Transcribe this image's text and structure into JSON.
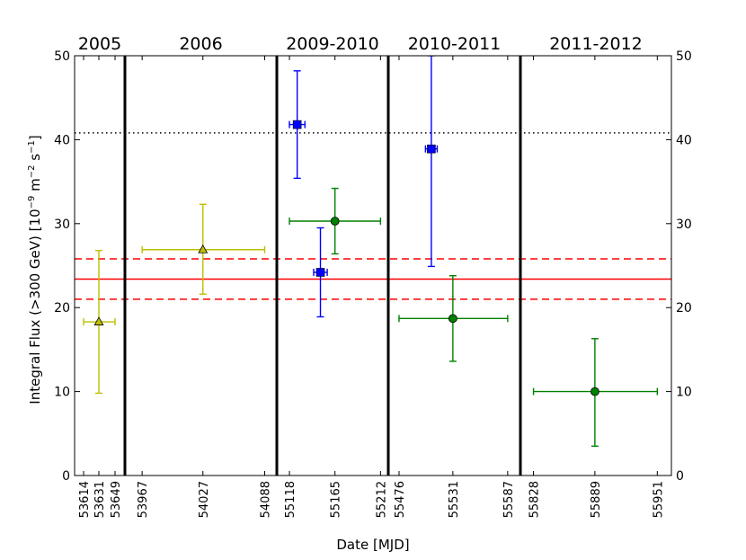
{
  "chart_data": {
    "type": "scatter",
    "xlabel": "Date [MJD]",
    "ylabel_parts": {
      "main": "Integral Flux (>300 GeV) [10",
      "exp1": "−9",
      "mid": " m",
      "exp2": "−2",
      "mid2": " s",
      "exp3": "−1",
      "end": "]"
    },
    "ylim": [
      0,
      50
    ],
    "yticks": [
      "0",
      "10",
      "20",
      "30",
      "40",
      "50"
    ],
    "yticks_right": [
      "0",
      "10",
      "20",
      "30",
      "40",
      "50"
    ],
    "grid": false,
    "panels": [
      {
        "title": "2005",
        "xlim": [
          53604,
          53660
        ],
        "xticks": [
          "53614",
          "53631",
          "53649"
        ]
      },
      {
        "title": "2006",
        "xlim": [
          53950,
          54100
        ],
        "xticks": [
          "53967",
          "54027",
          "54088"
        ]
      },
      {
        "title": "2009-2010",
        "xlim": [
          55105,
          55220
        ],
        "xticks": [
          "55118",
          "55165",
          "55212"
        ]
      },
      {
        "title": "2010-2011",
        "xlim": [
          55465,
          55600
        ],
        "xticks": [
          "55476",
          "55531",
          "55587"
        ]
      },
      {
        "title": "2011-2012",
        "xlim": [
          55815,
          55965
        ],
        "xticks": [
          "55828",
          "55889",
          "55951"
        ]
      }
    ],
    "reference_lines": {
      "mean": 23.4,
      "mean_color": "#ff0000",
      "band": [
        21.0,
        25.8
      ],
      "band_color": "#ff0000",
      "dotted": 40.8,
      "dotted_color": "#000000"
    },
    "series": [
      {
        "marker": "triangle",
        "color": "#bfbf00",
        "fill": "#bfbf00",
        "points": [
          {
            "panel": 0,
            "x": 53631,
            "xerr": [
              53614,
              53649
            ],
            "y": 18.3,
            "yerr": [
              9.8,
              26.8
            ]
          },
          {
            "panel": 1,
            "x": 54027,
            "xerr": [
              53967,
              54088
            ],
            "y": 26.9,
            "yerr": [
              21.6,
              32.3
            ]
          }
        ]
      },
      {
        "marker": "square",
        "color": "#0000ff",
        "fill": "#0000ff",
        "points": [
          {
            "panel": 2,
            "x": 55126,
            "xerr": [
              55118,
              55134
            ],
            "y": 41.8,
            "yerr": [
              35.4,
              48.2
            ]
          },
          {
            "panel": 2,
            "x": 55150,
            "xerr": [
              55143,
              55157
            ],
            "y": 24.2,
            "yerr": [
              18.9,
              29.5
            ]
          },
          {
            "panel": 3,
            "x": 55509,
            "xerr": [
              55503,
              55515
            ],
            "y": 38.9,
            "yerr": [
              24.9,
              50
            ]
          }
        ]
      },
      {
        "marker": "circle",
        "color": "#008000",
        "fill": "#008000",
        "points": [
          {
            "panel": 2,
            "x": 55165,
            "xerr": [
              55118,
              55212
            ],
            "y": 30.3,
            "yerr": [
              26.4,
              34.2
            ]
          },
          {
            "panel": 3,
            "x": 55531,
            "xerr": [
              55476,
              55587
            ],
            "y": 18.7,
            "yerr": [
              13.6,
              23.8
            ]
          },
          {
            "panel": 4,
            "x": 55889,
            "xerr": [
              55828,
              55951
            ],
            "y": 10.0,
            "yerr": [
              3.5,
              16.3
            ]
          }
        ]
      }
    ]
  }
}
